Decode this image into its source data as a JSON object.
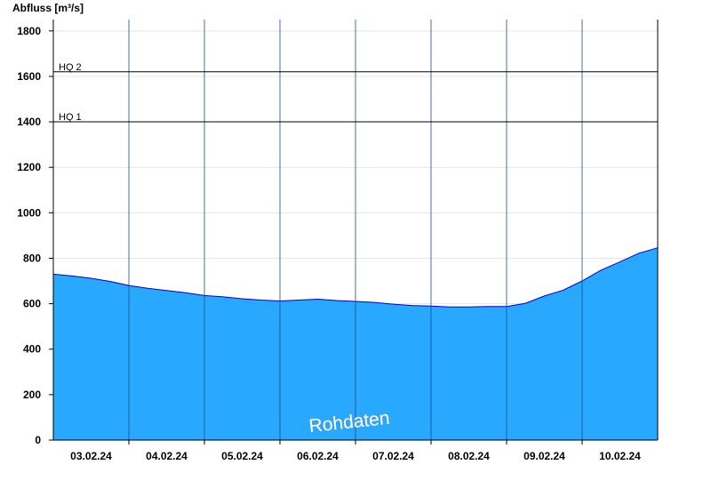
{
  "chart_data": {
    "type": "area",
    "ylabel": "Abfluss [m³/s]",
    "ylim": [
      0,
      1850
    ],
    "yticks": [
      0,
      200,
      400,
      600,
      800,
      1000,
      1200,
      1400,
      1600,
      1800
    ],
    "xlim": [
      "2024-02-02T12:00",
      "2024-02-10T12:00"
    ],
    "x_tick_labels": [
      "03.02.24",
      "04.02.24",
      "05.02.24",
      "06.02.24",
      "07.02.24",
      "08.02.24",
      "09.02.24",
      "10.02.24"
    ],
    "day_boundaries": [
      "2024-02-03T12:00",
      "2024-02-04T12:00",
      "2024-02-05T12:00",
      "2024-02-06T12:00",
      "2024-02-07T12:00",
      "2024-02-08T12:00",
      "2024-02-09T12:00",
      "2024-02-10T12:00"
    ],
    "grid": "horizontal",
    "reference_lines": [
      {
        "label": "HQ 2",
        "value": 1620
      },
      {
        "label": "HQ 1",
        "value": 1400
      }
    ],
    "series": [
      {
        "color": "#29a8ff",
        "line_color": "#0000cc",
        "x": [
          "2024-02-02T12:00",
          "2024-02-02T18:00",
          "2024-02-03T00:00",
          "2024-02-03T06:00",
          "2024-02-03T12:00",
          "2024-02-03T18:00",
          "2024-02-04T00:00",
          "2024-02-04T06:00",
          "2024-02-04T12:00",
          "2024-02-04T18:00",
          "2024-02-05T00:00",
          "2024-02-05T06:00",
          "2024-02-05T12:00",
          "2024-02-05T18:00",
          "2024-02-06T00:00",
          "2024-02-06T06:00",
          "2024-02-06T12:00",
          "2024-02-06T18:00",
          "2024-02-07T00:00",
          "2024-02-07T06:00",
          "2024-02-07T12:00",
          "2024-02-07T18:00",
          "2024-02-08T00:00",
          "2024-02-08T06:00",
          "2024-02-08T12:00",
          "2024-02-08T18:00",
          "2024-02-09T00:00",
          "2024-02-09T06:00",
          "2024-02-09T12:00",
          "2024-02-09T18:00",
          "2024-02-10T00:00",
          "2024-02-10T06:00",
          "2024-02-10T12:00"
        ],
        "values": [
          730,
          722,
          712,
          698,
          680,
          668,
          658,
          648,
          636,
          630,
          622,
          616,
          612,
          616,
          620,
          614,
          610,
          606,
          598,
          592,
          590,
          586,
          586,
          588,
          588,
          602,
          634,
          660,
          700,
          748,
          784,
          822,
          846
        ]
      }
    ],
    "annotations": [
      "Rohdaten"
    ]
  }
}
